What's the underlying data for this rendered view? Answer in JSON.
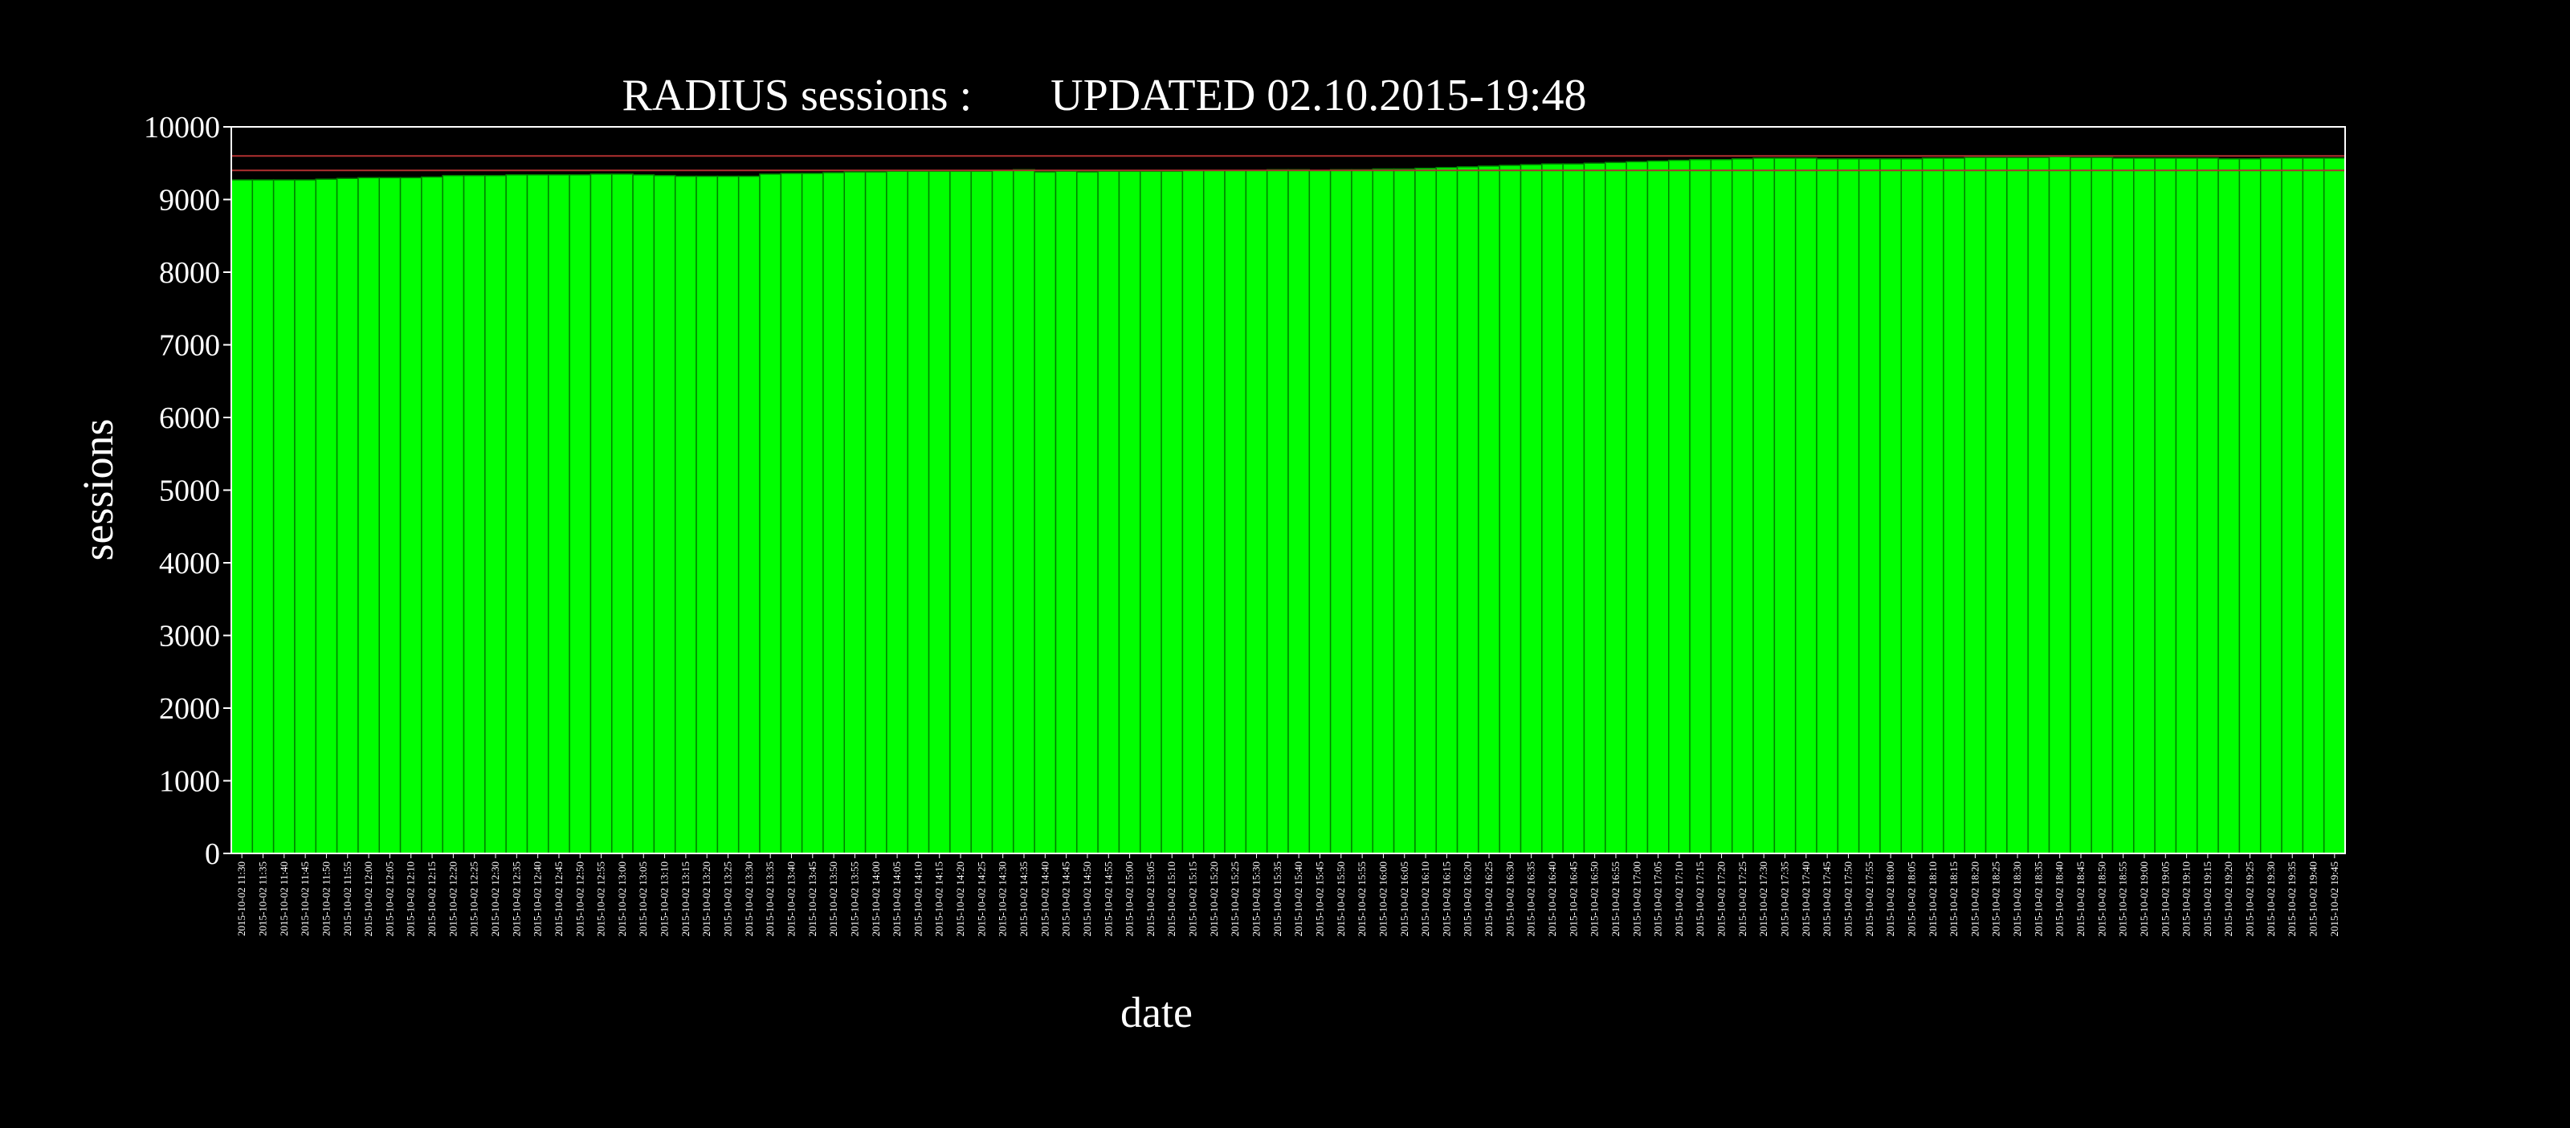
{
  "colors": {
    "background": "#000000",
    "bar_fill": "#00ff00",
    "bar_stroke": "#008000",
    "text": "#ffffff",
    "axis": "#ffffff",
    "threshold_line": "#b03030"
  },
  "chart_data": {
    "type": "bar",
    "title": "RADIUS sessions :       UPDATED 02.10.2015-19:48",
    "xlabel": "date",
    "ylabel": "sessions",
    "ylim": [
      0,
      10000
    ],
    "yticks": [
      0,
      1000,
      2000,
      3000,
      4000,
      5000,
      6000,
      7000,
      8000,
      9000,
      10000
    ],
    "grid": false,
    "legend": "none",
    "threshold_lines": [
      9600,
      9400
    ],
    "categories": [
      "2015-10-02 11:30",
      "2015-10-02 11:35",
      "2015-10-02 11:40",
      "2015-10-02 11:45",
      "2015-10-02 11:50",
      "2015-10-02 11:55",
      "2015-10-02 12:00",
      "2015-10-02 12:05",
      "2015-10-02 12:10",
      "2015-10-02 12:15",
      "2015-10-02 12:20",
      "2015-10-02 12:25",
      "2015-10-02 12:30",
      "2015-10-02 12:35",
      "2015-10-02 12:40",
      "2015-10-02 12:45",
      "2015-10-02 12:50",
      "2015-10-02 12:55",
      "2015-10-02 13:00",
      "2015-10-02 13:05",
      "2015-10-02 13:10",
      "2015-10-02 13:15",
      "2015-10-02 13:20",
      "2015-10-02 13:25",
      "2015-10-02 13:30",
      "2015-10-02 13:35",
      "2015-10-02 13:40",
      "2015-10-02 13:45",
      "2015-10-02 13:50",
      "2015-10-02 13:55",
      "2015-10-02 14:00",
      "2015-10-02 14:05",
      "2015-10-02 14:10",
      "2015-10-02 14:15",
      "2015-10-02 14:20",
      "2015-10-02 14:25",
      "2015-10-02 14:30",
      "2015-10-02 14:35",
      "2015-10-02 14:40",
      "2015-10-02 14:45",
      "2015-10-02 14:50",
      "2015-10-02 14:55",
      "2015-10-02 15:00",
      "2015-10-02 15:05",
      "2015-10-02 15:10",
      "2015-10-02 15:15",
      "2015-10-02 15:20",
      "2015-10-02 15:25",
      "2015-10-02 15:30",
      "2015-10-02 15:35",
      "2015-10-02 15:40",
      "2015-10-02 15:45",
      "2015-10-02 15:50",
      "2015-10-02 15:55",
      "2015-10-02 16:00",
      "2015-10-02 16:05",
      "2015-10-02 16:10",
      "2015-10-02 16:15",
      "2015-10-02 16:20",
      "2015-10-02 16:25",
      "2015-10-02 16:30",
      "2015-10-02 16:35",
      "2015-10-02 16:40",
      "2015-10-02 16:45",
      "2015-10-02 16:50",
      "2015-10-02 16:55",
      "2015-10-02 17:00",
      "2015-10-02 17:05",
      "2015-10-02 17:10",
      "2015-10-02 17:15",
      "2015-10-02 17:20",
      "2015-10-02 17:25",
      "2015-10-02 17:30",
      "2015-10-02 17:35",
      "2015-10-02 17:40",
      "2015-10-02 17:45",
      "2015-10-02 17:50",
      "2015-10-02 17:55",
      "2015-10-02 18:00",
      "2015-10-02 18:05",
      "2015-10-02 18:10",
      "2015-10-02 18:15",
      "2015-10-02 18:20",
      "2015-10-02 18:25",
      "2015-10-02 18:30",
      "2015-10-02 18:35",
      "2015-10-02 18:40",
      "2015-10-02 18:45",
      "2015-10-02 18:50",
      "2015-10-02 18:55",
      "2015-10-02 19:00",
      "2015-10-02 19:05",
      "2015-10-02 19:10",
      "2015-10-02 19:15",
      "2015-10-02 19:20",
      "2015-10-02 19:25",
      "2015-10-02 19:30",
      "2015-10-02 19:35",
      "2015-10-02 19:40",
      "2015-10-02 19:45"
    ],
    "values": [
      9270,
      9270,
      9270,
      9270,
      9280,
      9290,
      9300,
      9300,
      9300,
      9310,
      9330,
      9330,
      9330,
      9340,
      9340,
      9340,
      9340,
      9350,
      9350,
      9340,
      9330,
      9320,
      9320,
      9320,
      9320,
      9350,
      9360,
      9360,
      9370,
      9380,
      9380,
      9390,
      9390,
      9390,
      9390,
      9390,
      9400,
      9410,
      9380,
      9390,
      9380,
      9390,
      9390,
      9390,
      9390,
      9400,
      9400,
      9400,
      9400,
      9410,
      9410,
      9400,
      9410,
      9410,
      9420,
      9420,
      9430,
      9440,
      9450,
      9460,
      9470,
      9480,
      9490,
      9490,
      9500,
      9510,
      9520,
      9530,
      9540,
      9550,
      9550,
      9560,
      9570,
      9570,
      9570,
      9560,
      9560,
      9560,
      9560,
      9560,
      9570,
      9570,
      9580,
      9580,
      9580,
      9580,
      9590,
      9580,
      9580,
      9570,
      9570,
      9570,
      9570,
      9570,
      9560,
      9560,
      9570,
      9570,
      9570,
      9570
    ]
  }
}
